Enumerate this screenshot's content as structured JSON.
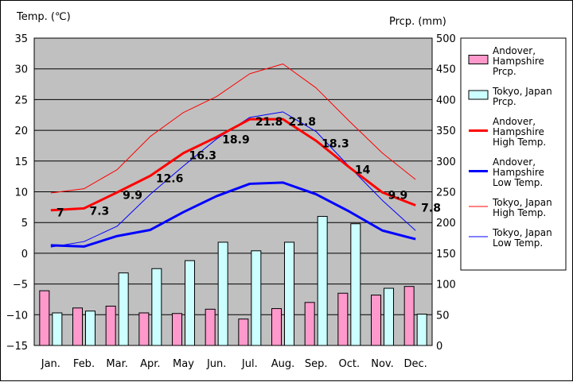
{
  "chart_data": {
    "type": "bar+line",
    "categories": [
      "Jan.",
      "Feb.",
      "Mar.",
      "Apr.",
      "May",
      "Jun.",
      "Jul.",
      "Aug.",
      "Sep.",
      "Oct.",
      "Nov.",
      "Dec."
    ],
    "y_left": {
      "label": "Temp. (℃)",
      "min": -15,
      "max": 35,
      "step": 5
    },
    "y_right": {
      "label": "Prcp. (mm)",
      "min": 0,
      "max": 500,
      "step": 50
    },
    "grid": true,
    "legend_position": "right",
    "series": [
      {
        "name": "Andover, Hampshire Prcp.",
        "legend_lines": [
          "Andover,",
          "Hampshire",
          "Prcp."
        ],
        "kind": "bar",
        "axis": "right",
        "color": "#ff99cc",
        "values": [
          89,
          61,
          64,
          53,
          52,
          59,
          43,
          60,
          70,
          85,
          82,
          96
        ]
      },
      {
        "name": "Tokyo, Japan Prcp.",
        "legend_lines": [
          "Tokyo, Japan",
          "Prcp."
        ],
        "kind": "bar",
        "axis": "right",
        "color": "#ccffff",
        "values": [
          53,
          56,
          118,
          125,
          138,
          168,
          154,
          168,
          210,
          198,
          93,
          51
        ]
      },
      {
        "name": "Andover, Hampshire High Temp.",
        "legend_lines": [
          "Andover,",
          "Hampshire",
          "High Temp."
        ],
        "kind": "line",
        "axis": "left",
        "color": "#ff0000",
        "width": 3,
        "labeled": true,
        "values": [
          7,
          7.3,
          9.9,
          12.6,
          16.3,
          18.9,
          21.8,
          21.8,
          18.3,
          14,
          9.9,
          7.8
        ]
      },
      {
        "name": "Andover, Hampshire Low Temp.",
        "legend_lines": [
          "Andover,",
          "Hampshire",
          "Low Temp."
        ],
        "kind": "line",
        "axis": "left",
        "color": "#0000ff",
        "width": 3,
        "labeled": false,
        "values": [
          1.3,
          1.1,
          2.8,
          3.8,
          6.7,
          9.3,
          11.3,
          11.5,
          9.6,
          6.8,
          3.7,
          2.3
        ]
      },
      {
        "name": "Tokyo, Japan High Temp.",
        "legend_lines": [
          "Tokyo, Japan",
          "High Temp."
        ],
        "kind": "line",
        "axis": "left",
        "color": "#ff0000",
        "width": 1,
        "labeled": false,
        "values": [
          9.8,
          10.5,
          13.6,
          19,
          22.9,
          25.5,
          29.2,
          30.8,
          26.9,
          21.5,
          16.3,
          12
        ]
      },
      {
        "name": "Tokyo, Japan Low Temp.",
        "legend_lines": [
          "Tokyo, Japan",
          "Low Temp."
        ],
        "kind": "line",
        "axis": "left",
        "color": "#0000ff",
        "width": 1,
        "labeled": false,
        "values": [
          1,
          1.9,
          4.4,
          9.6,
          14.2,
          18.6,
          22.1,
          23,
          19.8,
          14.1,
          8.6,
          3.7
        ]
      }
    ]
  }
}
